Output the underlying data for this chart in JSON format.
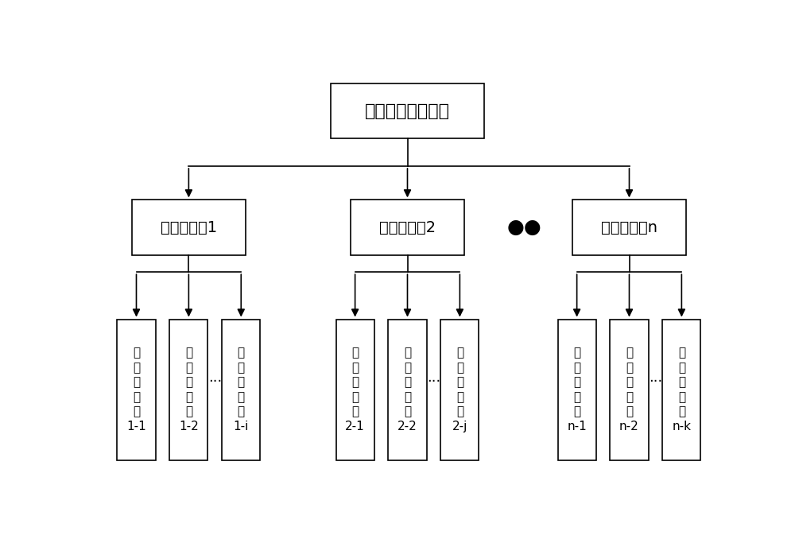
{
  "title": "电容式电压互感器",
  "level2_labels": [
    "综合状态量1",
    "综合状态量2",
    "综合状态量n"
  ],
  "level2_dots": "●●",
  "level3_groups": [
    {
      "labels": [
        "单\n项\n状\n态\n量\n1-1",
        "单\n项\n状\n态\n量\n1-2",
        "单\n项\n状\n态\n量\n1-i"
      ],
      "dots": "..."
    },
    {
      "labels": [
        "单\n项\n状\n态\n量\n2-1",
        "单\n项\n状\n态\n量\n2-2",
        "单\n项\n状\n态\n量\n2-j"
      ],
      "dots": "..."
    },
    {
      "labels": [
        "单\n项\n状\n态\n量\nn-1",
        "单\n项\n状\n态\n量\nn-2",
        "单\n项\n状\n态\n量\nn-k"
      ],
      "dots": "..."
    }
  ],
  "bg_color": "#ffffff",
  "box_edge_color": "#000000",
  "box_face_color": "#ffffff",
  "text_color": "#000000",
  "arrow_color": "#000000",
  "fig_width": 10.0,
  "fig_height": 6.83,
  "dpi": 100
}
